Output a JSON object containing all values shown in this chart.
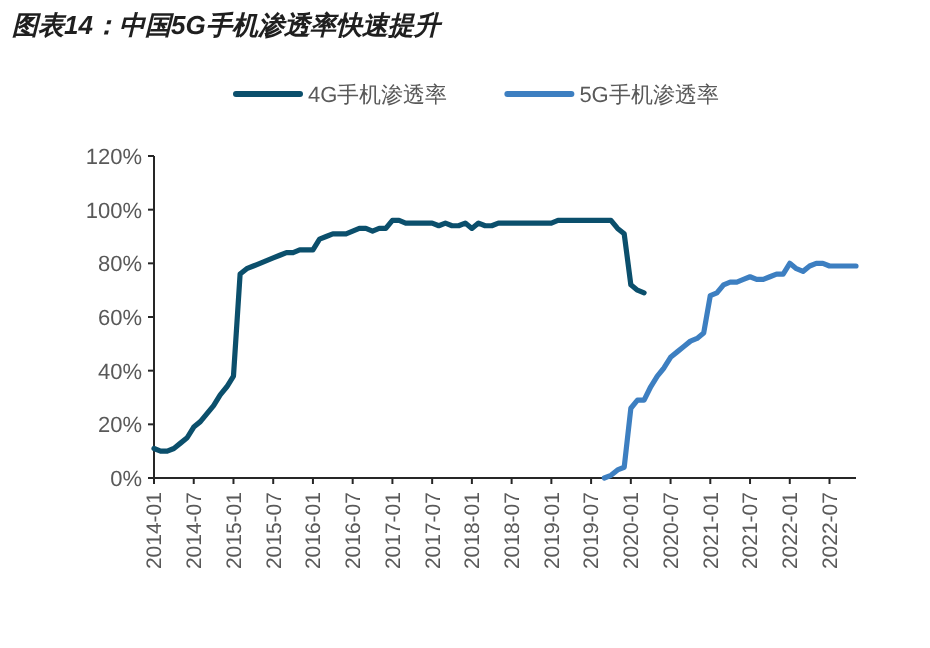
{
  "chart_data": {
    "type": "line",
    "title": "图表14：中国5G手机渗透率快速提升",
    "legend": "top",
    "marker": "none",
    "grid": false,
    "xlim": [
      "2014-01",
      "2022-11"
    ],
    "xticks": [
      "2014-01",
      "2014-07",
      "2015-01",
      "2015-07",
      "2016-01",
      "2016-07",
      "2017-01",
      "2017-07",
      "2018-01",
      "2018-07",
      "2019-01",
      "2019-07",
      "2020-01",
      "2020-07",
      "2021-01",
      "2021-07",
      "2022-01",
      "2022-07"
    ],
    "ylim": [
      0,
      120
    ],
    "yticks": [
      {
        "value": 0,
        "label": "0%"
      },
      {
        "value": 20,
        "label": "20%"
      },
      {
        "value": 40,
        "label": "40%"
      },
      {
        "value": 60,
        "label": "60%"
      },
      {
        "value": 80,
        "label": "80%"
      },
      {
        "value": 100,
        "label": "100%"
      },
      {
        "value": 120,
        "label": "120%"
      }
    ],
    "series": [
      {
        "name": "4G手机渗透率",
        "color": "#0b4f6c",
        "x": [
          "2014-01",
          "2014-02",
          "2014-03",
          "2014-04",
          "2014-05",
          "2014-06",
          "2014-07",
          "2014-08",
          "2014-09",
          "2014-10",
          "2014-11",
          "2014-12",
          "2015-01",
          "2015-02",
          "2015-03",
          "2015-04",
          "2015-05",
          "2015-06",
          "2015-07",
          "2015-08",
          "2015-09",
          "2015-10",
          "2015-11",
          "2015-12",
          "2016-01",
          "2016-02",
          "2016-03",
          "2016-04",
          "2016-05",
          "2016-06",
          "2016-07",
          "2016-08",
          "2016-09",
          "2016-10",
          "2016-11",
          "2016-12",
          "2017-01",
          "2017-02",
          "2017-03",
          "2017-04",
          "2017-05",
          "2017-06",
          "2017-07",
          "2017-08",
          "2017-09",
          "2017-10",
          "2017-11",
          "2017-12",
          "2018-01",
          "2018-02",
          "2018-03",
          "2018-04",
          "2018-05",
          "2018-06",
          "2018-07",
          "2018-08",
          "2018-09",
          "2018-10",
          "2018-11",
          "2018-12",
          "2019-01",
          "2019-02",
          "2019-03",
          "2019-04",
          "2019-05",
          "2019-06",
          "2019-07",
          "2019-08",
          "2019-09",
          "2019-10",
          "2019-11",
          "2019-12",
          "2020-01",
          "2020-02",
          "2020-03"
        ],
        "values": [
          11,
          10,
          10,
          11,
          13,
          15,
          19,
          21,
          24,
          27,
          31,
          34,
          38,
          76,
          78,
          79,
          80,
          81,
          82,
          83,
          84,
          84,
          85,
          85,
          85,
          89,
          90,
          91,
          91,
          91,
          92,
          93,
          93,
          92,
          93,
          93,
          96,
          96,
          95,
          95,
          95,
          95,
          95,
          94,
          95,
          94,
          94,
          95,
          93,
          95,
          94,
          94,
          95,
          95,
          95,
          95,
          95,
          95,
          95,
          95,
          95,
          96,
          96,
          96,
          96,
          96,
          96,
          96,
          96,
          96,
          93,
          91,
          72,
          70,
          69
        ]
      },
      {
        "name": "5G手机渗透率",
        "color": "#3d7fc1",
        "x": [
          "2019-09",
          "2019-10",
          "2019-11",
          "2019-12",
          "2020-01",
          "2020-02",
          "2020-03",
          "2020-04",
          "2020-05",
          "2020-06",
          "2020-07",
          "2020-08",
          "2020-09",
          "2020-10",
          "2020-11",
          "2020-12",
          "2021-01",
          "2021-02",
          "2021-03",
          "2021-04",
          "2021-05",
          "2021-06",
          "2021-07",
          "2021-08",
          "2021-09",
          "2021-10",
          "2021-11",
          "2021-12",
          "2022-01",
          "2022-02",
          "2022-03",
          "2022-04",
          "2022-05",
          "2022-06",
          "2022-07",
          "2022-08",
          "2022-09",
          "2022-10",
          "2022-11"
        ],
        "values": [
          0,
          1,
          3,
          4,
          26,
          29,
          29,
          34,
          38,
          41,
          45,
          47,
          49,
          51,
          52,
          54,
          68,
          69,
          72,
          73,
          73,
          74,
          75,
          74,
          74,
          75,
          76,
          76,
          80,
          78,
          77,
          79,
          80,
          80,
          79,
          79,
          79,
          79,
          79
        ]
      }
    ]
  }
}
